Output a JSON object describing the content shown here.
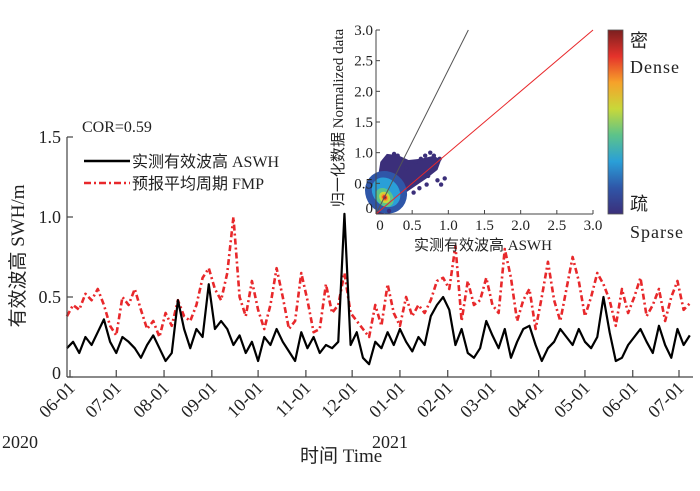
{
  "chart_data": [
    {
      "type": "line",
      "annotation": "COR=0.59",
      "xlabel": "时间 Time",
      "ylabel": "有效波高 SWH/m",
      "ylim": [
        0,
        1.5
      ],
      "yticks": [
        "0",
        "0.5",
        "1.0",
        "1.5"
      ],
      "ytick_values": [
        0,
        0.5,
        1.0,
        1.5
      ],
      "xlim": [
        "2020-05-30",
        "2021-07-09"
      ],
      "xticks": [
        "06-01",
        "07-01",
        "08-01",
        "09-01",
        "10-01",
        "11-01",
        "12-01",
        "01-01",
        "02-01",
        "03-01",
        "04-01",
        "05-01",
        "06-01",
        "07-01"
      ],
      "xtick_days": [
        2,
        32,
        63,
        94,
        124,
        155,
        185,
        216,
        247,
        275,
        306,
        336,
        367,
        397
      ],
      "year_labels": [
        {
          "label": "2020",
          "day": 2
        },
        {
          "label": "2021",
          "day": 216
        }
      ],
      "legend": {
        "placement": "top-left",
        "entries": [
          "实测有效波高 ASWH",
          "预报平均周期 FMP"
        ]
      },
      "grid": false,
      "x_step_days": 4,
      "series": [
        {
          "name": "实测有效波高 ASWH",
          "color": "#000000",
          "style": "solid",
          "values": [
            0.18,
            0.22,
            0.15,
            0.25,
            0.2,
            0.28,
            0.36,
            0.22,
            0.15,
            0.25,
            0.22,
            0.18,
            0.12,
            0.2,
            0.26,
            0.18,
            0.1,
            0.15,
            0.48,
            0.3,
            0.18,
            0.3,
            0.25,
            0.58,
            0.3,
            0.35,
            0.3,
            0.2,
            0.26,
            0.15,
            0.22,
            0.1,
            0.25,
            0.2,
            0.3,
            0.22,
            0.16,
            0.1,
            0.28,
            0.18,
            0.25,
            0.15,
            0.2,
            0.18,
            0.22,
            1.02,
            0.2,
            0.28,
            0.12,
            0.08,
            0.22,
            0.18,
            0.28,
            0.2,
            0.3,
            0.22,
            0.16,
            0.25,
            0.2,
            0.38,
            0.45,
            0.5,
            0.42,
            0.2,
            0.3,
            0.15,
            0.12,
            0.18,
            0.35,
            0.26,
            0.18,
            0.3,
            0.12,
            0.22,
            0.3,
            0.32,
            0.2,
            0.1,
            0.18,
            0.22,
            0.3,
            0.25,
            0.2,
            0.3,
            0.22,
            0.18,
            0.25,
            0.5,
            0.28,
            0.1,
            0.12,
            0.2,
            0.25,
            0.3,
            0.22,
            0.15,
            0.32,
            0.2,
            0.12,
            0.3,
            0.2,
            0.26
          ],
          "peak_value": 1.02
        },
        {
          "name": "预报平均周期 FMP",
          "color": "#e8282b",
          "style": "dashdot",
          "values": [
            0.38,
            0.45,
            0.42,
            0.52,
            0.48,
            0.55,
            0.45,
            0.32,
            0.26,
            0.5,
            0.45,
            0.55,
            0.42,
            0.3,
            0.35,
            0.25,
            0.4,
            0.32,
            0.48,
            0.38,
            0.35,
            0.45,
            0.62,
            0.68,
            0.55,
            0.48,
            0.65,
            1.0,
            0.5,
            0.38,
            0.6,
            0.42,
            0.3,
            0.45,
            0.68,
            0.5,
            0.3,
            0.35,
            0.65,
            0.48,
            0.28,
            0.3,
            0.58,
            0.4,
            0.45,
            0.65,
            0.4,
            0.35,
            0.3,
            0.25,
            0.45,
            0.32,
            0.58,
            0.4,
            0.32,
            0.5,
            0.38,
            0.45,
            0.4,
            0.48,
            0.6,
            0.62,
            0.55,
            0.82,
            0.35,
            0.6,
            0.45,
            0.48,
            0.62,
            0.45,
            0.4,
            0.8,
            0.62,
            0.35,
            0.48,
            0.55,
            0.3,
            0.5,
            0.72,
            0.48,
            0.35,
            0.55,
            0.75,
            0.6,
            0.38,
            0.5,
            0.65,
            0.58,
            0.48,
            0.32,
            0.55,
            0.4,
            0.5,
            0.62,
            0.38,
            0.45,
            0.55,
            0.35,
            0.5,
            0.6,
            0.42,
            0.46
          ]
        }
      ]
    },
    {
      "type": "scatter",
      "subtype": "density",
      "xlabel": "实测有效波高 ASWH",
      "ylabel": "归一化数据 Normalized data",
      "xlim": [
        0,
        3.0
      ],
      "ylim": [
        0,
        3.0
      ],
      "xticks": [
        "0",
        "0.5",
        "1.0",
        "1.5",
        "2.0",
        "2.5",
        "3.0"
      ],
      "yticks": [
        "0",
        "0.5",
        "1.0",
        "1.5",
        "2.0",
        "2.5",
        "3.0"
      ],
      "tick_values": [
        0,
        0.5,
        1.0,
        1.5,
        2.0,
        2.5,
        3.0
      ],
      "reference_lines": [
        {
          "name": "fit line",
          "color": "#555555",
          "slope": 2.35,
          "intercept": 0
        },
        {
          "name": "1:1 line",
          "color": "#e8282b",
          "slope": 1.0,
          "intercept": 0
        }
      ],
      "density_center": [
        0.12,
        0.27
      ],
      "colorbar": {
        "top_label_cn": "密",
        "top_label_en": "Dense",
        "bottom_label_cn": "疏",
        "bottom_label_en": "Sparse",
        "colors": [
          "#3b2f7a",
          "#2f56a8",
          "#2a9fd8",
          "#5cc38a",
          "#c8d83a",
          "#f6a22a",
          "#e5322b",
          "#7b1f1f"
        ]
      },
      "outlier_points": [
        [
          0.25,
          0.98
        ],
        [
          0.3,
          0.95
        ],
        [
          0.42,
          0.75
        ],
        [
          0.55,
          0.85
        ],
        [
          0.62,
          0.9
        ],
        [
          0.68,
          0.95
        ],
        [
          0.75,
          1.0
        ],
        [
          0.8,
          0.95
        ],
        [
          0.88,
          0.9
        ],
        [
          0.72,
          0.62
        ],
        [
          0.85,
          0.55
        ],
        [
          0.95,
          0.58
        ],
        [
          0.7,
          0.48
        ],
        [
          0.9,
          0.48
        ],
        [
          0.52,
          0.35
        ],
        [
          0.6,
          0.42
        ],
        [
          0.18,
          0.05
        ]
      ]
    }
  ]
}
